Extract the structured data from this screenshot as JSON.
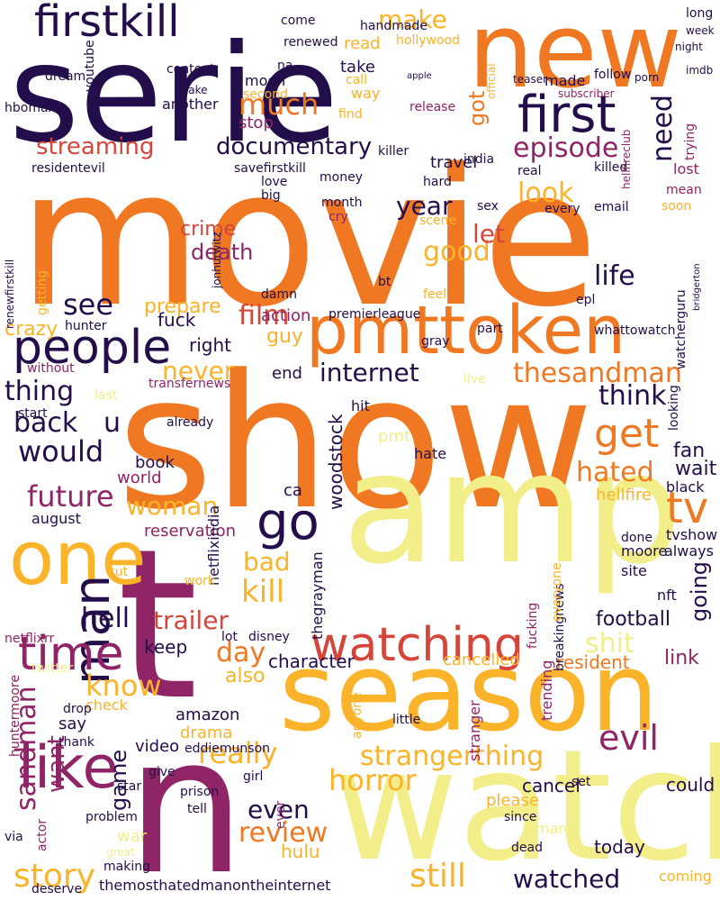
{
  "palette": {
    "deep_purple": "#230d4a",
    "magenta": "#8f2466",
    "red": "#d6453a",
    "orange": "#f07822",
    "amber": "#fbb32a",
    "pale_yellow": "#f2ee8a"
  },
  "words": [
    {
      "text": "movie",
      "color": "#f07822"
    },
    {
      "text": "show",
      "color": "#f07822"
    },
    {
      "text": "serie",
      "color": "#230d4a"
    },
    {
      "text": "amp",
      "color": "#f2ee8a"
    },
    {
      "text": "watch",
      "color": "#f2ee8a"
    },
    {
      "text": "season",
      "color": "#fbb32a"
    },
    {
      "text": "new",
      "color": "#f07822"
    },
    {
      "text": "t",
      "color": "#8f2466"
    },
    {
      "text": "n",
      "color": "#8f2466"
    },
    {
      "text": "one",
      "color": "#fbb32a"
    },
    {
      "text": "pmttoken",
      "color": "#f07822"
    },
    {
      "text": "first",
      "color": "#230d4a"
    },
    {
      "text": "firstkill",
      "color": "#230d4a"
    },
    {
      "text": "watching",
      "color": "#d6453a"
    },
    {
      "text": "man",
      "color": "#230d4a"
    },
    {
      "text": "like",
      "color": "#8f2466"
    },
    {
      "text": "people",
      "color": "#230d4a"
    },
    {
      "text": "time",
      "color": "#8f2466"
    },
    {
      "text": "go",
      "color": "#230d4a"
    },
    {
      "text": "documentary",
      "color": "#230d4a"
    },
    {
      "text": "streaming",
      "color": "#d6453a"
    },
    {
      "text": "episode",
      "color": "#8f2466"
    },
    {
      "text": "strangerthing",
      "color": "#fbb32a"
    },
    {
      "text": "thesandman",
      "color": "#f07822"
    },
    {
      "text": "internet",
      "color": "#230d4a"
    },
    {
      "text": "much",
      "color": "#f07822"
    },
    {
      "text": "tv",
      "color": "#f07822"
    },
    {
      "text": "get",
      "color": "#f07822"
    },
    {
      "text": "review",
      "color": "#f07822"
    },
    {
      "text": "horror",
      "color": "#fbb32a"
    },
    {
      "text": "evil",
      "color": "#8f2466"
    },
    {
      "text": "still",
      "color": "#fbb32a"
    },
    {
      "text": "watched",
      "color": "#230d4a"
    },
    {
      "text": "story",
      "color": "#fbb32a"
    },
    {
      "text": "future",
      "color": "#8f2466"
    },
    {
      "text": "hated",
      "color": "#f07822"
    },
    {
      "text": "kill",
      "color": "#fbb32a"
    },
    {
      "text": "trailer",
      "color": "#d6453a"
    },
    {
      "text": "know",
      "color": "#fbb32a"
    },
    {
      "text": "really",
      "color": "#fbb32a"
    },
    {
      "text": "sandman",
      "color": "#8f2466"
    },
    {
      "text": "want",
      "color": "#8f2466"
    },
    {
      "text": "make",
      "color": "#fbb32a"
    },
    {
      "text": "need",
      "color": "#230d4a"
    },
    {
      "text": "good",
      "color": "#fbb32a"
    },
    {
      "text": "look",
      "color": "#fbb32a"
    },
    {
      "text": "see",
      "color": "#230d4a"
    },
    {
      "text": "would",
      "color": "#230d4a"
    },
    {
      "text": "thing",
      "color": "#230d4a"
    },
    {
      "text": "back",
      "color": "#230d4a"
    },
    {
      "text": "u",
      "color": "#230d4a"
    },
    {
      "text": "think",
      "color": "#230d4a"
    },
    {
      "text": "life",
      "color": "#230d4a"
    },
    {
      "text": "film",
      "color": "#d6453a"
    },
    {
      "text": "year",
      "color": "#230d4a"
    },
    {
      "text": "let",
      "color": "#d6453a"
    },
    {
      "text": "never",
      "color": "#fbb32a"
    },
    {
      "text": "woman",
      "color": "#fbb32a"
    },
    {
      "text": "day",
      "color": "#f07822"
    },
    {
      "text": "shit",
      "color": "#f2ee8a"
    },
    {
      "text": "bad",
      "color": "#fbb32a"
    },
    {
      "text": "hell",
      "color": "#230d4a"
    },
    {
      "text": "even",
      "color": "#230d4a"
    },
    {
      "text": "game",
      "color": "#230d4a"
    },
    {
      "text": "character",
      "color": "#230d4a"
    },
    {
      "text": "going",
      "color": "#230d4a"
    },
    {
      "text": "football",
      "color": "#230d4a"
    },
    {
      "text": "resident",
      "color": "#f07822"
    },
    {
      "text": "cancel",
      "color": "#230d4a"
    },
    {
      "text": "could",
      "color": "#230d4a"
    },
    {
      "text": "fan",
      "color": "#230d4a"
    },
    {
      "text": "wait",
      "color": "#230d4a"
    },
    {
      "text": "got",
      "color": "#f07822"
    },
    {
      "text": "crime",
      "color": "#d6453a"
    },
    {
      "text": "death",
      "color": "#8f2466"
    },
    {
      "text": "action",
      "color": "#8f2466"
    },
    {
      "text": "crazy",
      "color": "#fbb32a"
    },
    {
      "text": "prepare",
      "color": "#fbb32a"
    },
    {
      "text": "fuck",
      "color": "#230d4a"
    },
    {
      "text": "right",
      "color": "#230d4a"
    },
    {
      "text": "guy",
      "color": "#fbb32a"
    },
    {
      "text": "also",
      "color": "#fbb32a"
    },
    {
      "text": "keep",
      "color": "#230d4a"
    },
    {
      "text": "cancelled",
      "color": "#fbb32a"
    },
    {
      "text": "link",
      "color": "#8f2466"
    },
    {
      "text": "drama",
      "color": "#fbb32a"
    },
    {
      "text": "amazon",
      "color": "#230d4a"
    },
    {
      "text": "check",
      "color": "#fbb32a"
    },
    {
      "text": "say",
      "color": "#230d4a"
    },
    {
      "text": "video",
      "color": "#230d4a"
    },
    {
      "text": "hulu",
      "color": "#fbb32a"
    },
    {
      "text": "today",
      "color": "#230d4a"
    },
    {
      "text": "coming",
      "color": "#fbb32a"
    },
    {
      "text": "please",
      "color": "#fbb32a"
    },
    {
      "text": "woodstock",
      "color": "#230d4a"
    },
    {
      "text": "august",
      "color": "#230d4a"
    },
    {
      "text": "reservation",
      "color": "#8f2466"
    },
    {
      "text": "book",
      "color": "#230d4a"
    },
    {
      "text": "world",
      "color": "#8f2466"
    },
    {
      "text": "hellfire",
      "color": "#fbb32a"
    },
    {
      "text": "black",
      "color": "#230d4a"
    },
    {
      "text": "tvshow",
      "color": "#230d4a"
    },
    {
      "text": "always",
      "color": "#230d4a"
    },
    {
      "text": "site",
      "color": "#230d4a"
    },
    {
      "text": "moore",
      "color": "#230d4a"
    },
    {
      "text": "done",
      "color": "#230d4a"
    },
    {
      "text": "nft",
      "color": "#230d4a"
    },
    {
      "text": "ca",
      "color": "#230d4a"
    },
    {
      "text": "end",
      "color": "#230d4a"
    },
    {
      "text": "hit",
      "color": "#230d4a"
    },
    {
      "text": "hate",
      "color": "#230d4a"
    },
    {
      "text": "pmt",
      "color": "#f2ee8a"
    },
    {
      "text": "sex",
      "color": "#230d4a"
    },
    {
      "text": "travel",
      "color": "#230d4a"
    },
    {
      "text": "made",
      "color": "#230d4a"
    },
    {
      "text": "lost",
      "color": "#8f2466"
    },
    {
      "text": "mean",
      "color": "#8f2466"
    },
    {
      "text": "soon",
      "color": "#fbb32a"
    },
    {
      "text": "killed",
      "color": "#230d4a"
    },
    {
      "text": "india",
      "color": "#230d4a"
    },
    {
      "text": "real",
      "color": "#230d4a"
    },
    {
      "text": "killer",
      "color": "#230d4a"
    },
    {
      "text": "money",
      "color": "#230d4a"
    },
    {
      "text": "love",
      "color": "#230d4a"
    },
    {
      "text": "big",
      "color": "#230d4a"
    },
    {
      "text": "month",
      "color": "#230d4a"
    },
    {
      "text": "cry",
      "color": "#8f2466"
    },
    {
      "text": "scene",
      "color": "#fbb32a"
    },
    {
      "text": "every",
      "color": "#230d4a"
    },
    {
      "text": "email",
      "color": "#230d4a"
    },
    {
      "text": "hard",
      "color": "#230d4a"
    },
    {
      "text": "bt",
      "color": "#230d4a"
    },
    {
      "text": "feel",
      "color": "#fbb32a"
    },
    {
      "text": "damn",
      "color": "#230d4a"
    },
    {
      "text": "premierleague",
      "color": "#230d4a"
    },
    {
      "text": "watcherguru",
      "color": "#230d4a"
    },
    {
      "text": "whattowatch",
      "color": "#230d4a"
    },
    {
      "text": "epl",
      "color": "#230d4a"
    },
    {
      "text": "live",
      "color": "#f2ee8a"
    },
    {
      "text": "part",
      "color": "#230d4a"
    },
    {
      "text": "gray",
      "color": "#230d4a"
    },
    {
      "text": "thegrayman",
      "color": "#230d4a"
    },
    {
      "text": "netflixindia",
      "color": "#230d4a"
    },
    {
      "text": "transfernews",
      "color": "#8f2466"
    },
    {
      "text": "last",
      "color": "#f2ee8a"
    },
    {
      "text": "without",
      "color": "#8f2466"
    },
    {
      "text": "already",
      "color": "#230d4a"
    },
    {
      "text": "start",
      "color": "#230d4a"
    },
    {
      "text": "stranger",
      "color": "#8f2466"
    },
    {
      "text": "trending",
      "color": "#8f2466"
    },
    {
      "text": "little",
      "color": "#230d4a"
    },
    {
      "text": "anyone",
      "color": "#fbb32a"
    },
    {
      "text": "breakingnews",
      "color": "#230d4a"
    },
    {
      "text": "everyone",
      "color": "#fbb32a"
    },
    {
      "text": "fucking",
      "color": "#8f2466"
    },
    {
      "text": "thank",
      "color": "#230d4a"
    },
    {
      "text": "eddiemunson",
      "color": "#230d4a"
    },
    {
      "text": "prison",
      "color": "#230d4a"
    },
    {
      "text": "tell",
      "color": "#230d4a"
    },
    {
      "text": "girl",
      "color": "#230d4a"
    },
    {
      "text": "problem",
      "color": "#230d4a"
    },
    {
      "text": "making",
      "color": "#230d4a"
    },
    {
      "text": "deserve",
      "color": "#230d4a"
    },
    {
      "text": "themosthatedmanontheinternet",
      "color": "#230d4a"
    },
    {
      "text": "many",
      "color": "#f2ee8a"
    },
    {
      "text": "since",
      "color": "#230d4a"
    },
    {
      "text": "dead",
      "color": "#230d4a"
    },
    {
      "text": "set",
      "color": "#230d4a"
    },
    {
      "text": "give",
      "color": "#230d4a"
    },
    {
      "text": "ever",
      "color": "#8f2466"
    },
    {
      "text": "twitter",
      "color": "#f2ee8a"
    },
    {
      "text": "drop",
      "color": "#230d4a"
    },
    {
      "text": "work",
      "color": "#fbb32a"
    },
    {
      "text": "cut",
      "color": "#fbb32a"
    },
    {
      "text": "lot",
      "color": "#230d4a"
    },
    {
      "text": "disney",
      "color": "#230d4a"
    },
    {
      "text": "netflixrr",
      "color": "#8f2466"
    },
    {
      "text": "hunter",
      "color": "#230d4a"
    },
    {
      "text": "huntermoore",
      "color": "#8f2466"
    },
    {
      "text": "via",
      "color": "#230d4a"
    },
    {
      "text": "actor",
      "color": "#8f2466"
    },
    {
      "text": "war",
      "color": "#f2ee8a"
    },
    {
      "text": "great",
      "color": "#f2ee8a"
    },
    {
      "text": "star",
      "color": "#230d4a"
    },
    {
      "text": "handmade",
      "color": "#230d4a"
    },
    {
      "text": "hollywood",
      "color": "#fbb32a"
    },
    {
      "text": "read",
      "color": "#fbb32a"
    },
    {
      "text": "renewed",
      "color": "#230d4a"
    },
    {
      "text": "come",
      "color": "#230d4a"
    },
    {
      "text": "content",
      "color": "#230d4a"
    },
    {
      "text": "take",
      "color": "#230d4a"
    },
    {
      "text": "na",
      "color": "#230d4a"
    },
    {
      "text": "moon",
      "color": "#230d4a"
    },
    {
      "text": "call",
      "color": "#fbb32a"
    },
    {
      "text": "way",
      "color": "#fbb32a"
    },
    {
      "text": "second",
      "color": "#fbb32a"
    },
    {
      "text": "stop",
      "color": "#8f2466"
    },
    {
      "text": "find",
      "color": "#fbb32a"
    },
    {
      "text": "release",
      "color": "#8f2466"
    },
    {
      "text": "another",
      "color": "#230d4a"
    },
    {
      "text": "hbomax",
      "color": "#230d4a"
    },
    {
      "text": "youtube",
      "color": "#230d4a"
    },
    {
      "text": "dream",
      "color": "#230d4a"
    },
    {
      "text": "fake",
      "color": "#230d4a"
    },
    {
      "text": "residentevil",
      "color": "#230d4a"
    },
    {
      "text": "savefirstkill",
      "color": "#230d4a"
    },
    {
      "text": "follow",
      "color": "#230d4a"
    },
    {
      "text": "teaser",
      "color": "#230d4a"
    },
    {
      "text": "subscriber",
      "color": "#8f2466"
    },
    {
      "text": "porn",
      "color": "#230d4a"
    },
    {
      "text": "imdb",
      "color": "#230d4a"
    },
    {
      "text": "week",
      "color": "#230d4a"
    },
    {
      "text": "long",
      "color": "#230d4a"
    },
    {
      "text": "night",
      "color": "#230d4a"
    },
    {
      "text": "trying",
      "color": "#8f2466"
    },
    {
      "text": "getting",
      "color": "#fbb32a"
    },
    {
      "text": "renewfirstkill",
      "color": "#230d4a"
    },
    {
      "text": "jonhurwitz",
      "color": "#230d4a"
    },
    {
      "text": "looking",
      "color": "#230d4a"
    },
    {
      "text": "official",
      "color": "#fbb32a"
    },
    {
      "text": "apple",
      "color": "#230d4a"
    },
    {
      "text": "hellfireclub",
      "color": "#8f2466"
    },
    {
      "text": "bridgerton",
      "color": "#230d4a"
    }
  ]
}
